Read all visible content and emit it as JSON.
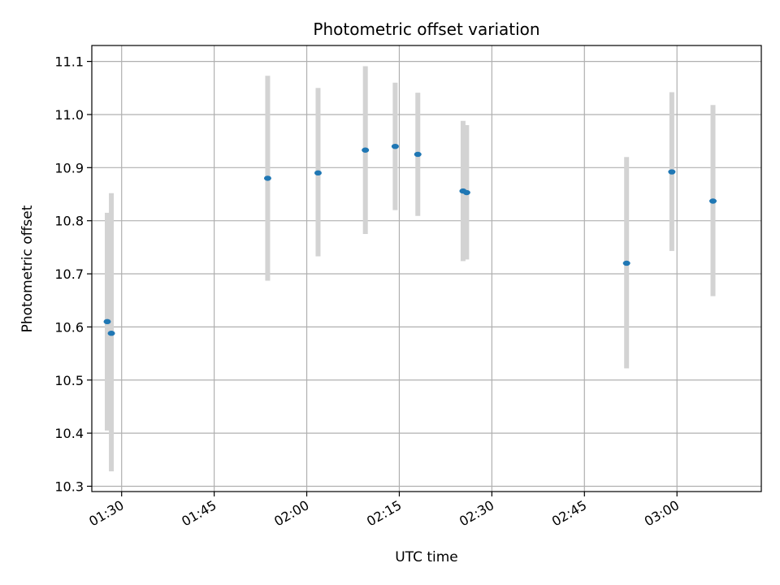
{
  "chart_data": {
    "type": "scatter",
    "title": "Photometric offset variation",
    "xlabel": "UTC time",
    "ylabel": "Photometric offset",
    "x_ticks": [
      "01:30",
      "01:45",
      "02:00",
      "02:15",
      "02:30",
      "02:45",
      "03:00"
    ],
    "y_ticks": [
      "10.3",
      "10.4",
      "10.5",
      "10.6",
      "10.7",
      "10.8",
      "10.9",
      "11.0",
      "11.1"
    ],
    "xlim": [
      "01:25:10",
      "03:13:40"
    ],
    "ylim": [
      10.29,
      11.13
    ],
    "grid": true,
    "colors": {
      "point": "#1f77b4",
      "errorbar": "#d3d3d3",
      "grid": "#b0b0b0"
    },
    "points": [
      {
        "x": "01:27:40",
        "y": 10.61,
        "ylow": 10.405,
        "yhigh": 10.815
      },
      {
        "x": "01:28:20",
        "y": 10.588,
        "ylow": 10.328,
        "yhigh": 10.852
      },
      {
        "x": "01:53:40",
        "y": 10.88,
        "ylow": 10.687,
        "yhigh": 11.073
      },
      {
        "x": "02:01:50",
        "y": 10.89,
        "ylow": 10.733,
        "yhigh": 11.05
      },
      {
        "x": "02:09:30",
        "y": 10.933,
        "ylow": 10.775,
        "yhigh": 11.091
      },
      {
        "x": "02:14:20",
        "y": 10.94,
        "ylow": 10.82,
        "yhigh": 11.06
      },
      {
        "x": "02:18:00",
        "y": 10.925,
        "ylow": 10.809,
        "yhigh": 11.041
      },
      {
        "x": "02:25:20",
        "y": 10.856,
        "ylow": 10.724,
        "yhigh": 10.988
      },
      {
        "x": "02:25:55",
        "y": 10.853,
        "ylow": 10.727,
        "yhigh": 10.98
      },
      {
        "x": "02:51:50",
        "y": 10.72,
        "ylow": 10.522,
        "yhigh": 10.92
      },
      {
        "x": "02:59:10",
        "y": 10.892,
        "ylow": 10.743,
        "yhigh": 11.042
      },
      {
        "x": "03:05:50",
        "y": 10.837,
        "ylow": 10.658,
        "yhigh": 11.018
      }
    ]
  }
}
